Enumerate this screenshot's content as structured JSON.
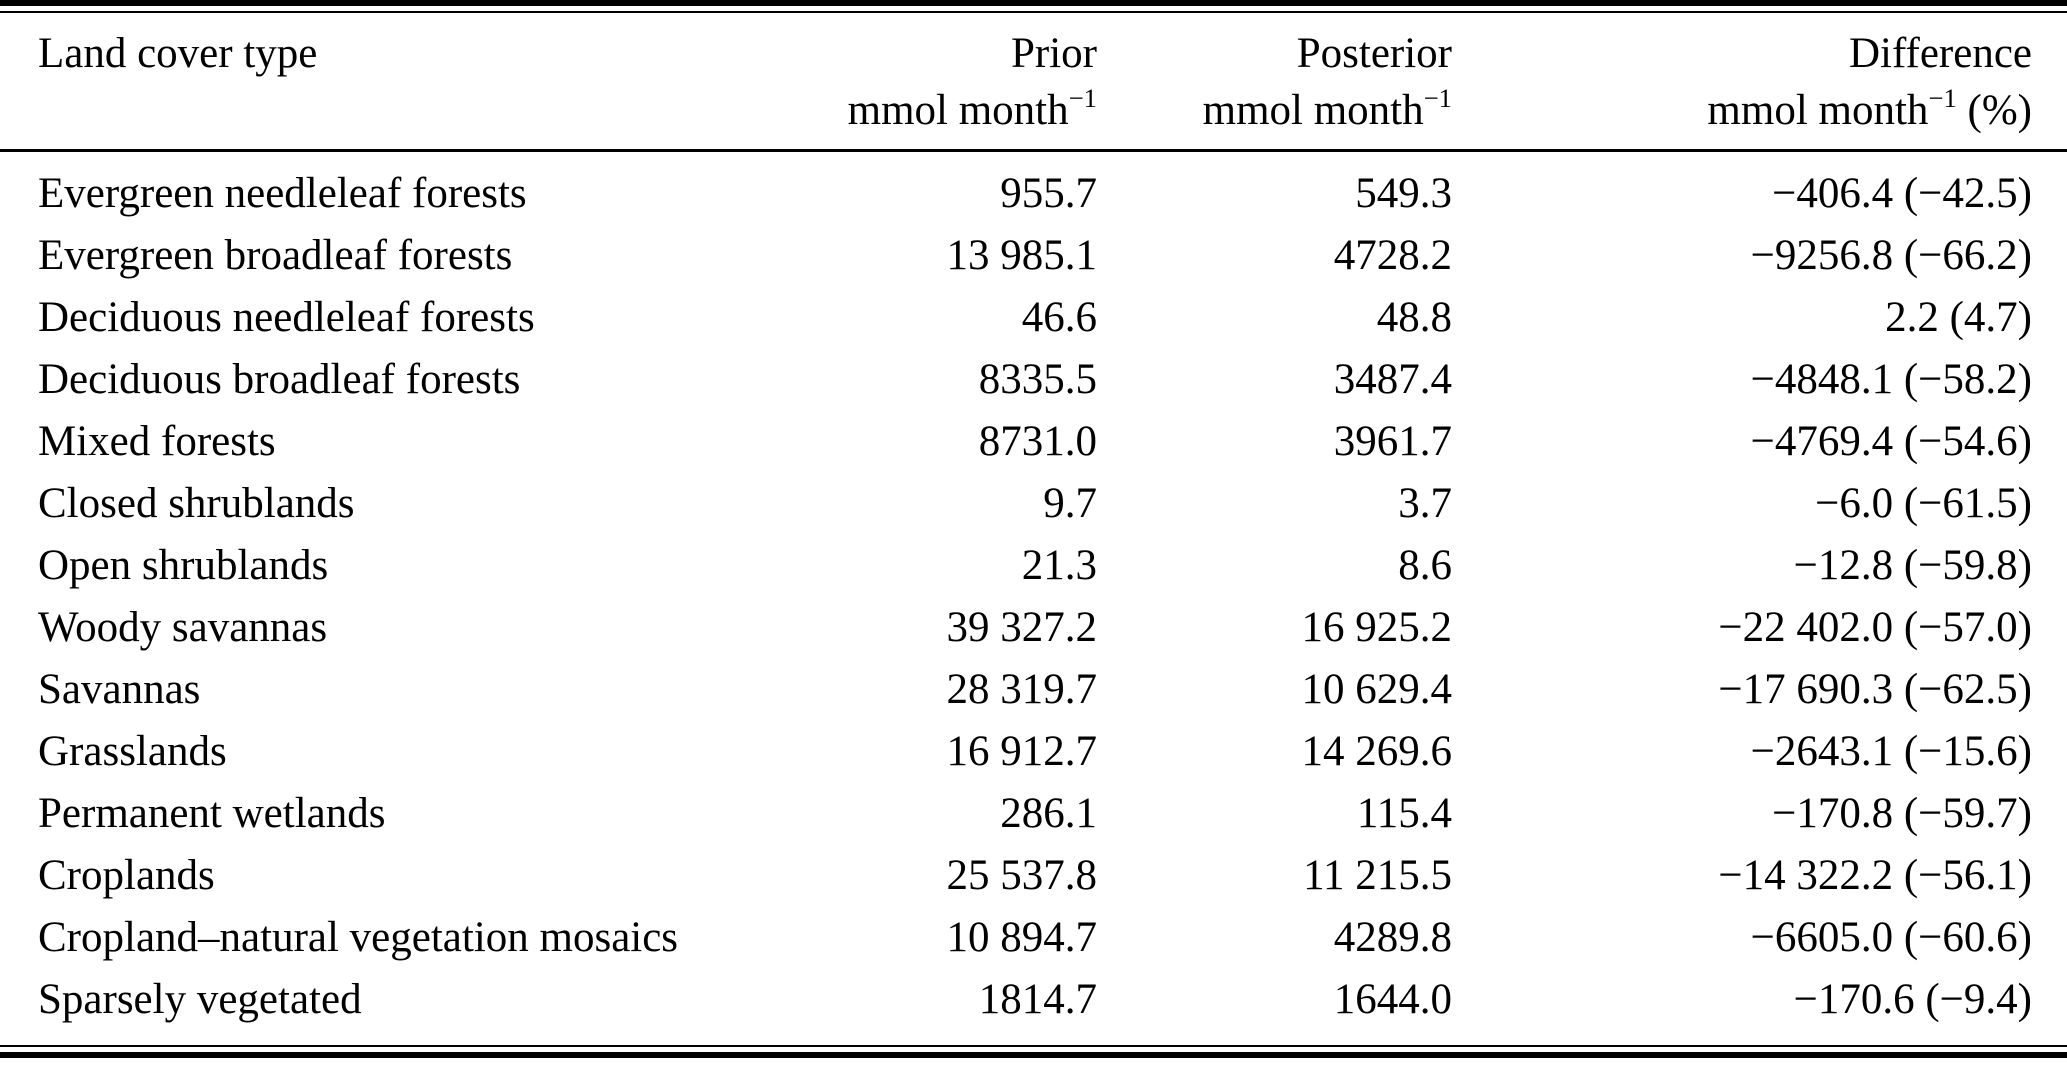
{
  "table": {
    "columns": {
      "col1": {
        "title": "Land cover type"
      },
      "col2": {
        "title": "Prior",
        "unit": "mmol month",
        "unit_sup": "−1",
        "unit_suffix": ""
      },
      "col3": {
        "title": "Posterior",
        "unit": "mmol month",
        "unit_sup": "−1",
        "unit_suffix": ""
      },
      "col4": {
        "title": "Difference",
        "unit": "mmol month",
        "unit_sup": "−1",
        "unit_suffix": " (%)"
      }
    },
    "rows": [
      {
        "land_cover_type": "Evergreen needleleaf forests",
        "prior": "955.7",
        "posterior": "549.3",
        "difference": "−406.4 (−42.5)"
      },
      {
        "land_cover_type": "Evergreen broadleaf forests",
        "prior": "13 985.1",
        "posterior": "4728.2",
        "difference": "−9256.8 (−66.2)"
      },
      {
        "land_cover_type": "Deciduous needleleaf forests",
        "prior": "46.6",
        "posterior": "48.8",
        "difference": "2.2 (4.7)"
      },
      {
        "land_cover_type": "Deciduous broadleaf forests",
        "prior": "8335.5",
        "posterior": "3487.4",
        "difference": "−4848.1 (−58.2)"
      },
      {
        "land_cover_type": "Mixed forests",
        "prior": "8731.0",
        "posterior": "3961.7",
        "difference": "−4769.4 (−54.6)"
      },
      {
        "land_cover_type": "Closed shrublands",
        "prior": "9.7",
        "posterior": "3.7",
        "difference": "−6.0 (−61.5)"
      },
      {
        "land_cover_type": "Open shrublands",
        "prior": "21.3",
        "posterior": "8.6",
        "difference": "−12.8 (−59.8)"
      },
      {
        "land_cover_type": "Woody savannas",
        "prior": "39 327.2",
        "posterior": "16 925.2",
        "difference": "−22 402.0 (−57.0)"
      },
      {
        "land_cover_type": "Savannas",
        "prior": "28 319.7",
        "posterior": "10 629.4",
        "difference": "−17 690.3 (−62.5)"
      },
      {
        "land_cover_type": "Grasslands",
        "prior": "16 912.7",
        "posterior": "14 269.6",
        "difference": "−2643.1 (−15.6)"
      },
      {
        "land_cover_type": "Permanent wetlands",
        "prior": "286.1",
        "posterior": "115.4",
        "difference": "−170.8 (−59.7)"
      },
      {
        "land_cover_type": "Croplands",
        "prior": "25 537.8",
        "posterior": "11 215.5",
        "difference": "−14 322.2 (−56.1)"
      },
      {
        "land_cover_type": "Cropland–natural vegetation mosaics",
        "prior": "10 894.7",
        "posterior": "4289.8",
        "difference": "−6605.0 (−60.6)"
      },
      {
        "land_cover_type": "Sparsely vegetated",
        "prior": "1814.7",
        "posterior": "1644.0",
        "difference": "−170.6 (−9.4)"
      }
    ]
  },
  "colors": {
    "text": "#000000",
    "background": "#ffffff",
    "rule": "#000000"
  }
}
